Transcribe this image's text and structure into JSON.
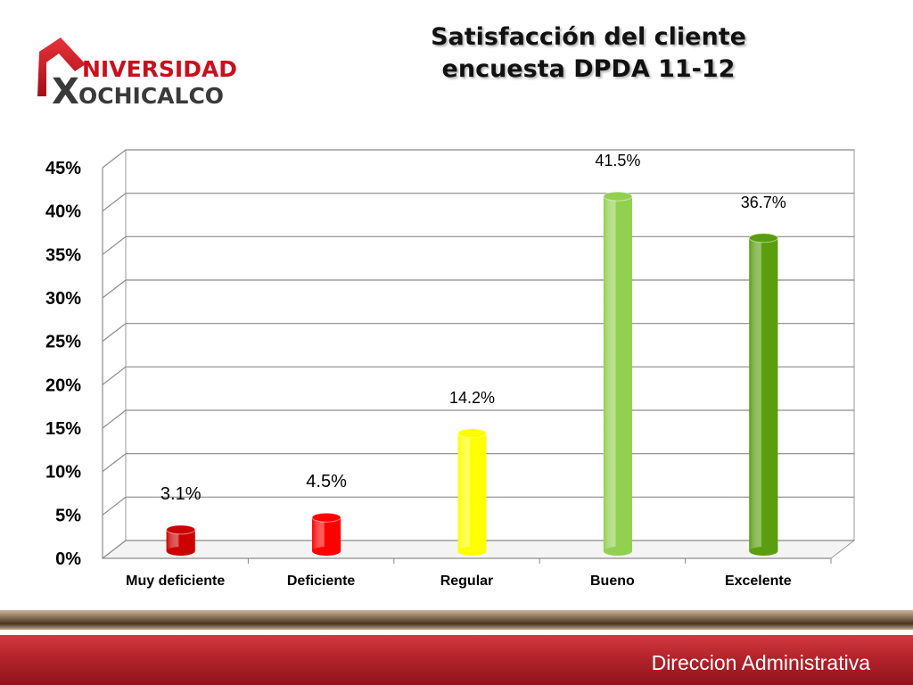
{
  "logo": {
    "line1": "NIVERSIDAD",
    "line2": "OCHICALCO",
    "mark": "U",
    "mark2": "X"
  },
  "title": {
    "line1": "Satisfacción del cliente",
    "line2": "encuesta DPDA 11-12"
  },
  "footer": {
    "text": "Direccion Administrativa"
  },
  "chart_data": {
    "type": "bar",
    "title": "Satisfacción del cliente encuesta DPDA 11-12",
    "xlabel": "",
    "ylabel": "",
    "categories": [
      "Muy deficiente",
      "Deficiente",
      "Regular",
      "Bueno",
      "Excelente"
    ],
    "values": [
      3.1,
      4.5,
      14.2,
      41.5,
      36.7
    ],
    "data_labels": [
      "3.1%",
      "4.5%",
      "14.2%",
      "41.5%",
      "36.7%"
    ],
    "colors": [
      "#cc0000",
      "#ff0000",
      "#ffff00",
      "#92d050",
      "#5a9e0f"
    ],
    "ylim": [
      0,
      45
    ],
    "yticks": [
      "0%",
      "5%",
      "10%",
      "15%",
      "20%",
      "25%",
      "30%",
      "35%",
      "40%",
      "45%"
    ],
    "grid": true,
    "legend": "none"
  }
}
